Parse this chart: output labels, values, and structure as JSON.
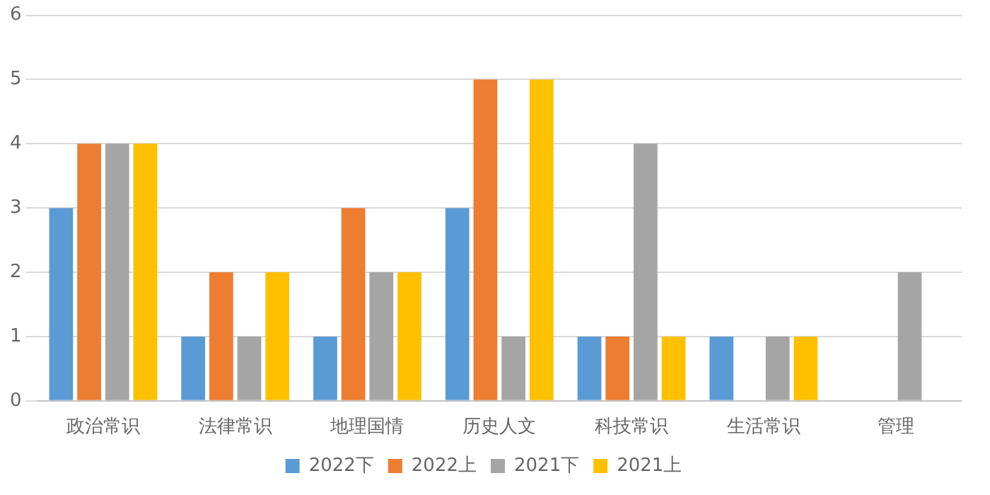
{
  "chart_data": {
    "type": "bar",
    "categories": [
      "政治常识",
      "法律常识",
      "地理国情",
      "历史人文",
      "科技常识",
      "生活常识",
      "管理"
    ],
    "series": [
      {
        "name": "2022下",
        "color": "#5b9bd5",
        "values": [
          3,
          1,
          1,
          3,
          1,
          1,
          0
        ]
      },
      {
        "name": "2022上",
        "color": "#ed7d31",
        "values": [
          4,
          2,
          3,
          5,
          1,
          0,
          0
        ]
      },
      {
        "name": "2021下",
        "color": "#a5a5a5",
        "values": [
          4,
          1,
          2,
          1,
          4,
          1,
          2
        ]
      },
      {
        "name": "2021上",
        "color": "#ffc000",
        "values": [
          4,
          2,
          2,
          5,
          1,
          1,
          0
        ]
      }
    ],
    "ylim": [
      0,
      6
    ],
    "yticks": [
      0,
      1,
      2,
      3,
      4,
      5,
      6
    ],
    "grid": "y",
    "legend": "bottom"
  }
}
